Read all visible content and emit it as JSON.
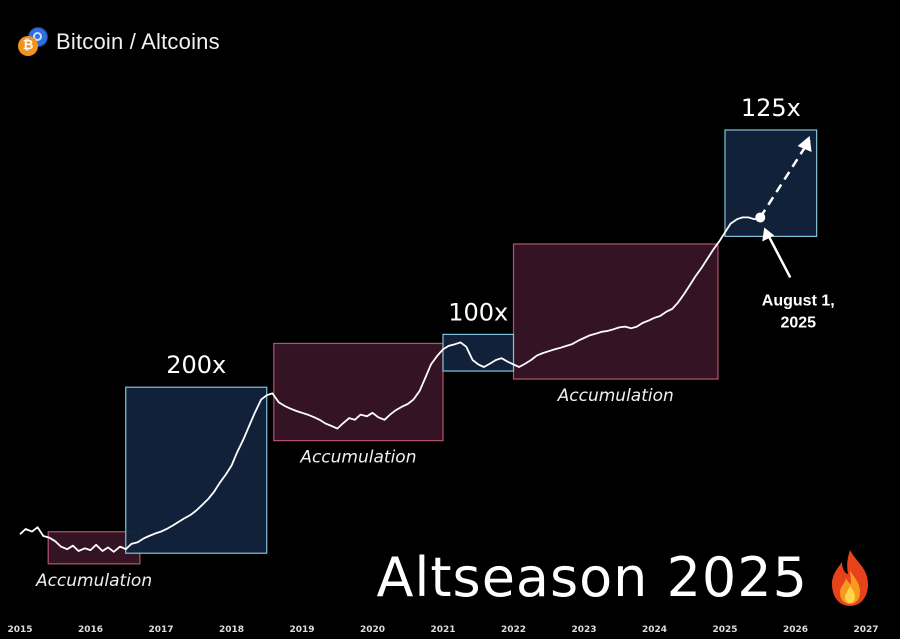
{
  "header": {
    "title": "Bitcoin / Altcoins",
    "icon": "bitcoin-altcoin-icon"
  },
  "headline": {
    "text": "Altseason 2025",
    "icon": "fire-icon"
  },
  "colors": {
    "background": "#000000",
    "line": "#ffffff",
    "pump_box": "#12233d",
    "pump_border": "#7fc4d8",
    "accum_box": "#3a1528",
    "accum_border": "#b4546e"
  },
  "chart_data": {
    "type": "line",
    "title": "",
    "xlabel": "",
    "ylabel": "",
    "x_ticks": [
      "2015",
      "2016",
      "2017",
      "2018",
      "2019",
      "2020",
      "2021",
      "2022",
      "2023",
      "2024",
      "2025",
      "2026",
      "2027"
    ],
    "xlim": [
      2015,
      2027.3
    ],
    "series": [
      {
        "x": [
          2015.0,
          2015.08,
          2015.17,
          2015.25,
          2015.33,
          2015.42,
          2015.5,
          2015.58,
          2015.67,
          2015.75,
          2015.83,
          2015.92,
          2016.0,
          2016.08,
          2016.17,
          2016.25,
          2016.33,
          2016.42,
          2016.5,
          2016.58,
          2016.67,
          2016.75,
          2016.83,
          2016.92,
          2017.0,
          2017.08,
          2017.17,
          2017.25,
          2017.33,
          2017.42,
          2017.5,
          2017.58,
          2017.67,
          2017.75,
          2017.83,
          2017.92,
          2018.0,
          2018.08,
          2018.17,
          2018.25,
          2018.33,
          2018.42,
          2018.5,
          2018.58,
          2018.67,
          2018.75,
          2018.83,
          2018.92,
          2019.0,
          2019.08,
          2019.17,
          2019.25,
          2019.33,
          2019.42,
          2019.5,
          2019.58,
          2019.67,
          2019.75,
          2019.83,
          2019.92,
          2020.0,
          2020.08,
          2020.17,
          2020.25,
          2020.33,
          2020.42,
          2020.5,
          2020.58,
          2020.67,
          2020.75,
          2020.83,
          2020.92,
          2021.0,
          2021.08,
          2021.17,
          2021.25,
          2021.33,
          2021.42,
          2021.5,
          2021.58,
          2021.67,
          2021.75,
          2021.83,
          2021.92,
          2022.0,
          2022.08,
          2022.17,
          2022.25,
          2022.33,
          2022.42,
          2022.5,
          2022.58,
          2022.67,
          2022.75,
          2022.83,
          2022.92,
          2023.0,
          2023.08,
          2023.17,
          2023.25,
          2023.33,
          2023.42,
          2023.5,
          2023.58,
          2023.67,
          2023.75,
          2023.83,
          2023.92,
          2024.0,
          2024.08,
          2024.17,
          2024.25,
          2024.33,
          2024.42,
          2024.5,
          2024.58,
          2024.67,
          2024.75,
          2024.83,
          2024.92,
          2025.0,
          2025.08,
          2025.17,
          2025.25,
          2025.33,
          2025.42,
          2025.5
        ],
        "y": [
          0.52,
          0.58,
          0.55,
          0.6,
          0.5,
          0.48,
          0.44,
          0.38,
          0.35,
          0.39,
          0.33,
          0.36,
          0.34,
          0.4,
          0.33,
          0.37,
          0.32,
          0.38,
          0.35,
          0.41,
          0.43,
          0.47,
          0.5,
          0.53,
          0.55,
          0.58,
          0.62,
          0.66,
          0.7,
          0.74,
          0.79,
          0.85,
          0.92,
          1.0,
          1.1,
          1.2,
          1.3,
          1.45,
          1.6,
          1.75,
          1.9,
          2.05,
          2.1,
          2.12,
          2.02,
          1.98,
          1.95,
          1.92,
          1.9,
          1.88,
          1.85,
          1.82,
          1.78,
          1.75,
          1.72,
          1.78,
          1.84,
          1.82,
          1.88,
          1.86,
          1.9,
          1.85,
          1.82,
          1.88,
          1.93,
          1.97,
          2.0,
          2.05,
          2.15,
          2.3,
          2.45,
          2.55,
          2.62,
          2.66,
          2.68,
          2.7,
          2.65,
          2.5,
          2.45,
          2.42,
          2.46,
          2.5,
          2.52,
          2.48,
          2.45,
          2.42,
          2.46,
          2.5,
          2.55,
          2.58,
          2.6,
          2.62,
          2.64,
          2.66,
          2.68,
          2.72,
          2.75,
          2.78,
          2.8,
          2.82,
          2.83,
          2.85,
          2.87,
          2.88,
          2.86,
          2.88,
          2.92,
          2.95,
          2.98,
          3.0,
          3.05,
          3.08,
          3.15,
          3.25,
          3.35,
          3.45,
          3.55,
          3.65,
          3.75,
          3.85,
          3.95,
          4.05,
          4.1,
          4.12,
          4.12,
          4.1,
          4.12
        ]
      }
    ],
    "projection": {
      "from": [
        2025.5,
        4.12
      ],
      "to": [
        2026.2,
        5.0
      ],
      "style": "dashed"
    },
    "pump_boxes": [
      {
        "label": "200x",
        "x": [
          2016.5,
          2018.5
        ]
      },
      {
        "label": "100x",
        "x": [
          2021.0,
          2022.0
        ]
      },
      {
        "label": "125x",
        "x": [
          2025.0,
          2026.3
        ]
      }
    ],
    "accumulation_boxes": [
      {
        "label": "Accumulation",
        "x": [
          2015.4,
          2016.7
        ]
      },
      {
        "label": "Accumulation",
        "x": [
          2018.6,
          2021.0
        ]
      },
      {
        "label": "Accumulation",
        "x": [
          2022.0,
          2024.9
        ]
      }
    ],
    "annotation": {
      "text": "August 1,\n2025",
      "point": [
        2025.5,
        4.12
      ]
    }
  }
}
